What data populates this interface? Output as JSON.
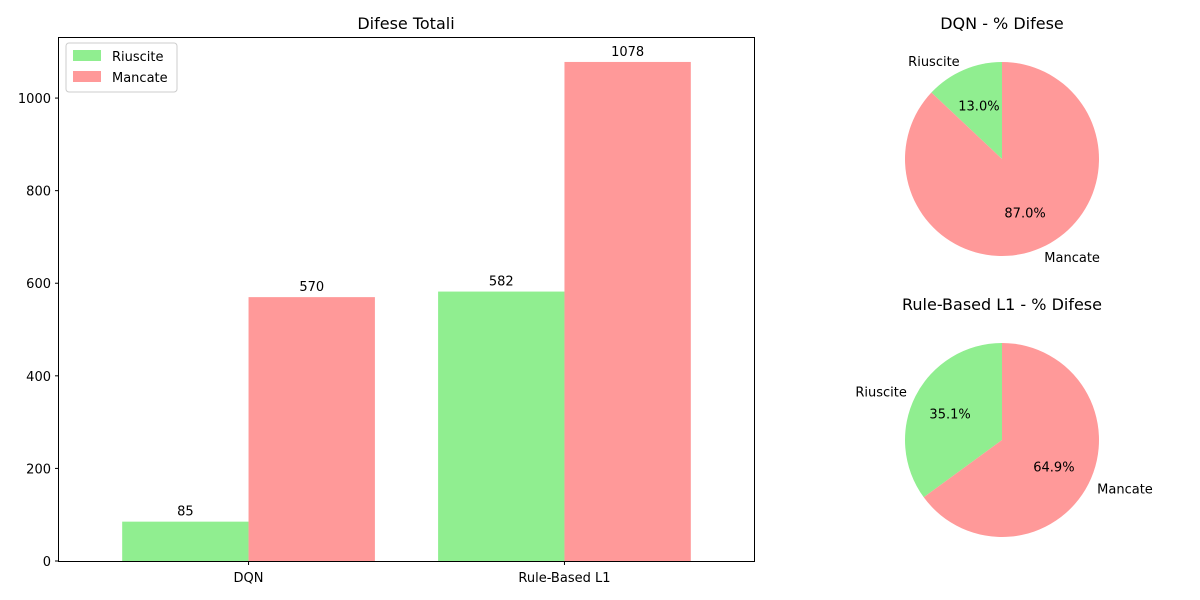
{
  "chart_data": [
    {
      "type": "bar",
      "title": "Difese Totali",
      "xlabel": "",
      "ylabel": "",
      "categories": [
        "DQN",
        "Rule-Based L1"
      ],
      "series": [
        {
          "name": "Riuscite",
          "values": [
            85,
            582
          ],
          "color": "#90ee90"
        },
        {
          "name": "Mancate",
          "values": [
            570,
            1078
          ],
          "color": "#ff9999"
        }
      ],
      "ylim": [
        0,
        1131.9
      ],
      "yticks": [
        0,
        200,
        400,
        600,
        800,
        1000
      ],
      "legend": "top-left",
      "grid": false
    },
    {
      "type": "pie",
      "title": "DQN - % Difese",
      "labels": [
        "Riuscite",
        "Mancate"
      ],
      "values": [
        85,
        570
      ],
      "percent_labels": [
        "13.0%",
        "87.0%"
      ],
      "colors": [
        "#90ee90",
        "#ff9999"
      ],
      "startangle": 90
    },
    {
      "type": "pie",
      "title": "Rule-Based L1 - % Difese",
      "labels": [
        "Riuscite",
        "Mancate"
      ],
      "values": [
        582,
        1078
      ],
      "percent_labels": [
        "35.1%",
        "64.9%"
      ],
      "colors": [
        "#90ee90",
        "#ff9999"
      ],
      "startangle": 90
    }
  ]
}
